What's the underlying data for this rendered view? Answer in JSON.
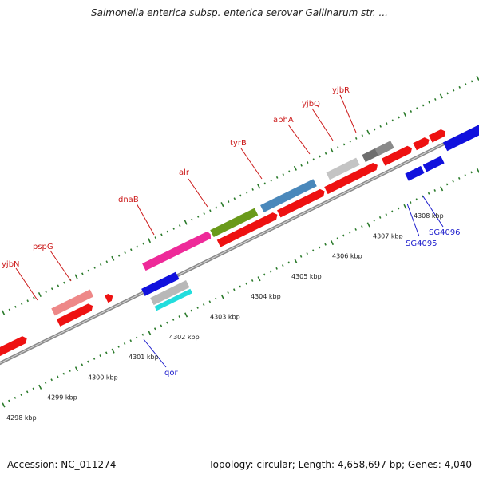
{
  "title": "Salmonella enterica subsp. enterica serovar Gallinarum str. ...",
  "footer": {
    "accession": "Accession: NC_011274",
    "summary": "Topology: circular; Length: 4,658,697 bp; Genes: 4,040"
  },
  "colors": {
    "backbone": "#8a8a8a",
    "tick": "#2a7a2a",
    "red": "#ee1111",
    "pink": "#ee2a99",
    "salmon": "#ee8888",
    "olive": "#6a9a1a",
    "steel": "#4a88bb",
    "silver": "#c4c4c4",
    "darkgray": "#6e6e6e",
    "blue": "#1111dd",
    "cyan": "#22dddd",
    "lightgray": "#b8b8b8"
  },
  "scale": {
    "labels": [
      "4298 kbp",
      "4299 kbp",
      "4300 kbp",
      "4301 kbp",
      "4302 kbp",
      "4303 kbp",
      "4304 kbp",
      "4305 kbp",
      "4306 kbp",
      "4307 kbp",
      "4308 kbp"
    ]
  },
  "gene_labels_top": [
    "yjbN",
    "pspG",
    "dnaB",
    "alr",
    "tyrB",
    "aphA",
    "yjbQ",
    "yjbR"
  ],
  "gene_labels_bottom": [
    "qor",
    "SG4095",
    "SG4096"
  ]
}
